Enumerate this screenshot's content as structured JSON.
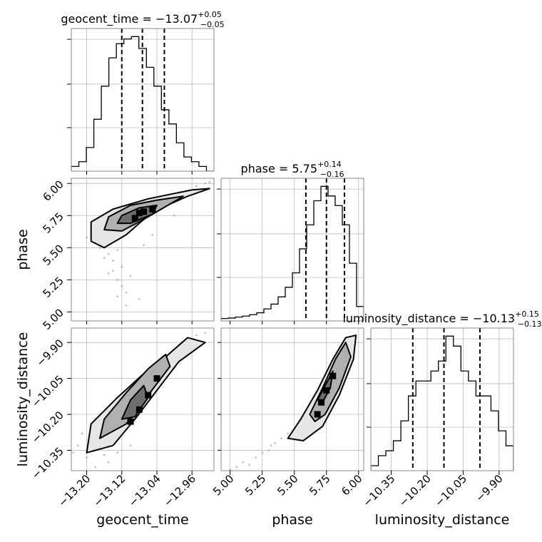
{
  "chart_data": {
    "type": "corner",
    "grid": true,
    "parameters": [
      {
        "name": "geocent_time",
        "xlabel": "geocent_time",
        "title_prefix": "geocent_time = ",
        "median": "−13.07",
        "err_plus": "+0.05",
        "err_minus": "−0.05",
        "range": [
          -13.235,
          -12.91
        ],
        "ticks": [
          -13.2,
          -13.12,
          -13.04,
          -12.96
        ],
        "tick_labels": [
          "−13.20",
          "−13.12",
          "−13.04",
          "−12.96"
        ],
        "quantile_lines": [
          -13.12,
          -13.073,
          -13.023
        ]
      },
      {
        "name": "phase",
        "xlabel": "phase",
        "ylabel": "phase",
        "title_prefix": "phase = ",
        "median": "5.75",
        "err_plus": "+0.14",
        "err_minus": "−0.16",
        "range": [
          4.93,
          6.04
        ],
        "ticks": [
          5.0,
          5.25,
          5.5,
          5.75,
          6.0
        ],
        "tick_labels": [
          "5.00",
          "5.25",
          "5.50",
          "5.75",
          "6.00"
        ],
        "quantile_lines": [
          5.59,
          5.75,
          5.89
        ]
      },
      {
        "name": "luminosity_distance",
        "xlabel": "luminosity_distance",
        "ylabel": "luminosity_distance",
        "title_prefix": "luminosity_distance = ",
        "median": "−10.13",
        "err_plus": "+0.15",
        "err_minus": "−0.13",
        "range": [
          -10.435,
          -9.84
        ],
        "ticks": [
          -10.35,
          -10.2,
          -10.05,
          -9.9
        ],
        "tick_labels": [
          "−10.35",
          "−10.20",
          "−10.05",
          "−9.90"
        ],
        "quantile_lines": [
          -10.26,
          -10.13,
          -9.98
        ]
      }
    ],
    "histograms": [
      {
        "parameter": "geocent_time",
        "counts": [
          1,
          2,
          5,
          11,
          18,
          24,
          27,
          28,
          28.5,
          26,
          22,
          18,
          13,
          10,
          6,
          3,
          2,
          1,
          0
        ]
      },
      {
        "parameter": "phase",
        "counts": [
          0.5,
          0.6,
          0.8,
          1,
          1.3,
          1.7,
          2.5,
          3.5,
          5,
          7,
          10,
          15,
          20,
          25,
          28,
          26,
          24,
          20,
          12,
          3
        ]
      },
      {
        "parameter": "luminosity_distance",
        "counts": [
          1,
          3,
          4,
          6,
          10,
          15,
          18,
          18,
          20,
          22,
          27,
          25,
          20,
          18,
          15,
          15,
          12,
          8,
          5
        ]
      }
    ],
    "scatter_2d": [
      {
        "x": "geocent_time",
        "y": "phase",
        "points": [
          [
            -13.16,
            5.55
          ],
          [
            -13.17,
            5.5
          ],
          [
            -13.15,
            5.45
          ],
          [
            -13.14,
            5.4
          ],
          [
            -13.15,
            5.3
          ],
          [
            -13.13,
            5.25
          ],
          [
            -13.12,
            5.2
          ],
          [
            -13.11,
            5.15
          ],
          [
            -13.11,
            5.05
          ],
          [
            -13.18,
            5.6
          ],
          [
            -13.19,
            5.66
          ],
          [
            -13.13,
            5.48
          ],
          [
            -13.12,
            5.35
          ],
          [
            -13.14,
            5.32
          ],
          [
            -13.1,
            5.28
          ],
          [
            -12.95,
            5.98
          ],
          [
            -12.93,
            6.0
          ],
          [
            -13.08,
            5.1
          ],
          [
            -13.16,
            5.42
          ],
          [
            -13.2,
            5.58
          ],
          [
            -13.05,
            5.6
          ],
          [
            -13.0,
            5.75
          ],
          [
            -13.07,
            5.52
          ],
          [
            -12.92,
            6.01
          ],
          [
            -13.13,
            5.12
          ]
        ],
        "contours": [
          [
            [
              -13.19,
              5.55
            ],
            [
              -13.19,
              5.7
            ],
            [
              -13.14,
              5.8
            ],
            [
              -13.06,
              5.88
            ],
            [
              -12.96,
              5.95
            ],
            [
              -12.92,
              5.96
            ],
            [
              -12.97,
              5.9
            ],
            [
              -13.05,
              5.78
            ],
            [
              -13.11,
              5.6
            ],
            [
              -13.16,
              5.5
            ]
          ],
          [
            [
              -13.16,
              5.64
            ],
            [
              -13.15,
              5.74
            ],
            [
              -13.1,
              5.83
            ],
            [
              -13.04,
              5.87
            ],
            [
              -12.98,
              5.9
            ],
            [
              -13.02,
              5.82
            ],
            [
              -13.07,
              5.72
            ],
            [
              -13.12,
              5.63
            ]
          ],
          [
            [
              -13.13,
              5.69
            ],
            [
              -13.12,
              5.75
            ],
            [
              -13.08,
              5.81
            ],
            [
              -13.04,
              5.83
            ],
            [
              -13.05,
              5.76
            ],
            [
              -13.1,
              5.69
            ]
          ]
        ],
        "density_peaks": [
          [
            -13.08,
            5.77
          ],
          [
            -13.07,
            5.78
          ],
          [
            -13.09,
            5.73
          ],
          [
            -13.05,
            5.8
          ]
        ]
      },
      {
        "x": "geocent_time",
        "y": "luminosity_distance",
        "points": [
          [
            -13.2,
            -10.38
          ],
          [
            -13.18,
            -10.42
          ],
          [
            -13.15,
            -10.4
          ],
          [
            -13.22,
            -10.33
          ],
          [
            -13.16,
            -10.37
          ],
          [
            -13.13,
            -10.36
          ],
          [
            -13.21,
            -10.28
          ],
          [
            -12.93,
            -9.86
          ],
          [
            -12.95,
            -9.87
          ],
          [
            -13.1,
            -10.33
          ],
          [
            -13.19,
            -10.3
          ],
          [
            -13.23,
            -10.36
          ]
        ],
        "contours": [
          [
            [
              -13.2,
              -10.36
            ],
            [
              -13.19,
              -10.24
            ],
            [
              -13.13,
              -10.13
            ],
            [
              -13.07,
              -10.03
            ],
            [
              -13.02,
              -9.96
            ],
            [
              -12.97,
              -9.88
            ],
            [
              -12.93,
              -9.9
            ],
            [
              -12.99,
              -9.98
            ],
            [
              -13.04,
              -10.1
            ],
            [
              -13.09,
              -10.22
            ],
            [
              -13.14,
              -10.33
            ]
          ],
          [
            [
              -13.17,
              -10.3
            ],
            [
              -13.16,
              -10.22
            ],
            [
              -13.11,
              -10.11
            ],
            [
              -13.06,
              -10.01
            ],
            [
              -13.02,
              -9.95
            ],
            [
              -13.01,
              -10.0
            ],
            [
              -13.06,
              -10.12
            ],
            [
              -13.11,
              -10.24
            ]
          ],
          [
            [
              -13.12,
              -10.22
            ],
            [
              -13.1,
              -10.14
            ],
            [
              -13.07,
              -10.08
            ],
            [
              -13.06,
              -10.13
            ],
            [
              -13.09,
              -10.21
            ]
          ]
        ],
        "density_peaks": [
          [
            -13.08,
            -10.18
          ],
          [
            -13.1,
            -10.23
          ],
          [
            -13.06,
            -10.12
          ],
          [
            -13.04,
            -10.05
          ]
        ]
      },
      {
        "x": "phase",
        "y": "luminosity_distance",
        "points": [
          [
            5.05,
            -10.42
          ],
          [
            5.1,
            -10.4
          ],
          [
            5.2,
            -10.38
          ],
          [
            5.3,
            -10.35
          ],
          [
            5.35,
            -10.32
          ],
          [
            5.25,
            -10.36
          ],
          [
            5.4,
            -10.3
          ],
          [
            5.15,
            -10.41
          ],
          [
            5.45,
            -10.28
          ],
          [
            5.0,
            -10.43
          ],
          [
            5.32,
            -10.33
          ],
          [
            5.5,
            -10.26
          ]
        ],
        "contours": [
          [
            [
              5.45,
              -10.3
            ],
            [
              5.55,
              -10.22
            ],
            [
              5.68,
              -10.1
            ],
            [
              5.8,
              -9.97
            ],
            [
              5.9,
              -9.88
            ],
            [
              5.98,
              -9.87
            ],
            [
              5.96,
              -9.97
            ],
            [
              5.85,
              -10.12
            ],
            [
              5.72,
              -10.25
            ],
            [
              5.57,
              -10.31
            ]
          ],
          [
            [
              5.62,
              -10.2
            ],
            [
              5.72,
              -10.09
            ],
            [
              5.82,
              -9.97
            ],
            [
              5.9,
              -9.9
            ],
            [
              5.94,
              -9.96
            ],
            [
              5.85,
              -10.09
            ],
            [
              5.74,
              -10.2
            ],
            [
              5.66,
              -10.23
            ]
          ],
          [
            [
              5.68,
              -10.14
            ],
            [
              5.74,
              -10.08
            ],
            [
              5.8,
              -10.02
            ],
            [
              5.78,
              -10.09
            ],
            [
              5.72,
              -10.15
            ]
          ]
        ],
        "density_peaks": [
          [
            5.71,
            -10.15
          ],
          [
            5.75,
            -10.1
          ],
          [
            5.8,
            -10.04
          ],
          [
            5.68,
            -10.2
          ]
        ]
      }
    ]
  }
}
